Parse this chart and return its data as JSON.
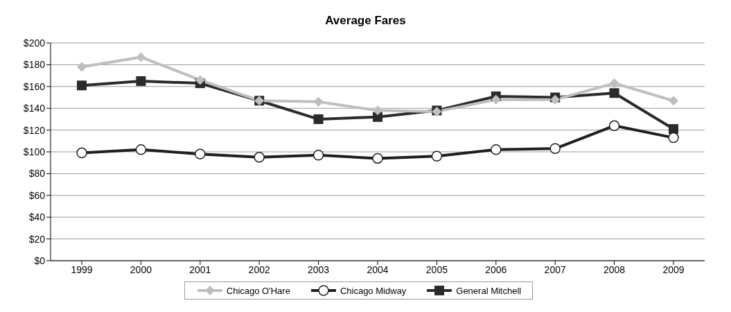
{
  "chart_data": {
    "type": "line",
    "title": "Average Fares",
    "categories": [
      "1999",
      "2000",
      "2001",
      "2002",
      "2003",
      "2004",
      "2005",
      "2006",
      "2007",
      "2008",
      "2009"
    ],
    "series": [
      {
        "name": "Chicago O'Hare",
        "color": "#bfbfbf",
        "marker": "diamond",
        "values": [
          178,
          187,
          166,
          147,
          146,
          138,
          137,
          148,
          148,
          163,
          147
        ]
      },
      {
        "name": "Chicago Midway",
        "color": "#1f1f1f",
        "marker": "circle",
        "values": [
          99,
          102,
          98,
          95,
          97,
          94,
          96,
          102,
          103,
          124,
          113
        ]
      },
      {
        "name": "General Mitchell",
        "color": "#2b2b2b",
        "marker": "square",
        "values": [
          161,
          165,
          163,
          147,
          130,
          132,
          138,
          151,
          150,
          154,
          121
        ]
      }
    ],
    "ylim": [
      0,
      200
    ],
    "yticks": [
      {
        "value": 0,
        "label": "$0"
      },
      {
        "value": 20,
        "label": "$20"
      },
      {
        "value": 40,
        "label": "$40"
      },
      {
        "value": 60,
        "label": "$60"
      },
      {
        "value": 80,
        "label": "$80"
      },
      {
        "value": 100,
        "label": "$100"
      },
      {
        "value": 120,
        "label": "$120"
      },
      {
        "value": 140,
        "label": "$140"
      },
      {
        "value": 160,
        "label": "$160"
      },
      {
        "value": 180,
        "label": "$180"
      },
      {
        "value": 200,
        "label": "$200"
      }
    ],
    "grid": "y",
    "legend": "bottom"
  }
}
